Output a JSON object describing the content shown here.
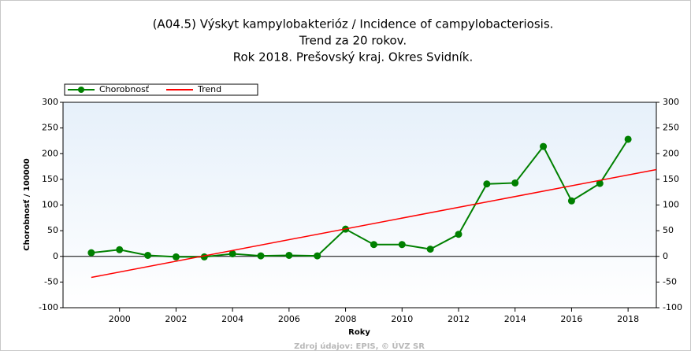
{
  "chart_data": {
    "type": "line",
    "title": [
      "(A04.5) Výskyt kampylobakterióz / Incidence of campylobacteriosis.",
      "Trend za 20 rokov.",
      "Rok 2018. Prešovský kraj. Okres Svidník."
    ],
    "x_label": "Roky",
    "y_label": "Chorobnosť / 100000",
    "source": "Zdroj údajov: EPIS, © ÚVZ SR",
    "xlim": [
      1998,
      2019
    ],
    "xticks": [
      2000,
      2002,
      2004,
      2006,
      2008,
      2010,
      2012,
      2014,
      2016,
      2018
    ],
    "ylim": [
      -100,
      300
    ],
    "yticks": [
      -100,
      -50,
      0,
      50,
      100,
      150,
      200,
      250,
      300
    ],
    "series": [
      {
        "name": "Chorobnosť",
        "color": "#008000",
        "x": [
          1999,
          2000,
          2001,
          2002,
          2003,
          2004,
          2005,
          2006,
          2007,
          2008,
          2009,
          2010,
          2011,
          2012,
          2013,
          2014,
          2015,
          2016,
          2017,
          2018
        ],
        "values": [
          7,
          13,
          2,
          -1,
          -1,
          5,
          1,
          2,
          1,
          53,
          23,
          23,
          14,
          43,
          141,
          143,
          214,
          108,
          142,
          228
        ]
      },
      {
        "name": "Trend",
        "color": "#ff0000",
        "x": [
          1999,
          2019
        ],
        "values": [
          -41,
          169
        ]
      }
    ]
  }
}
